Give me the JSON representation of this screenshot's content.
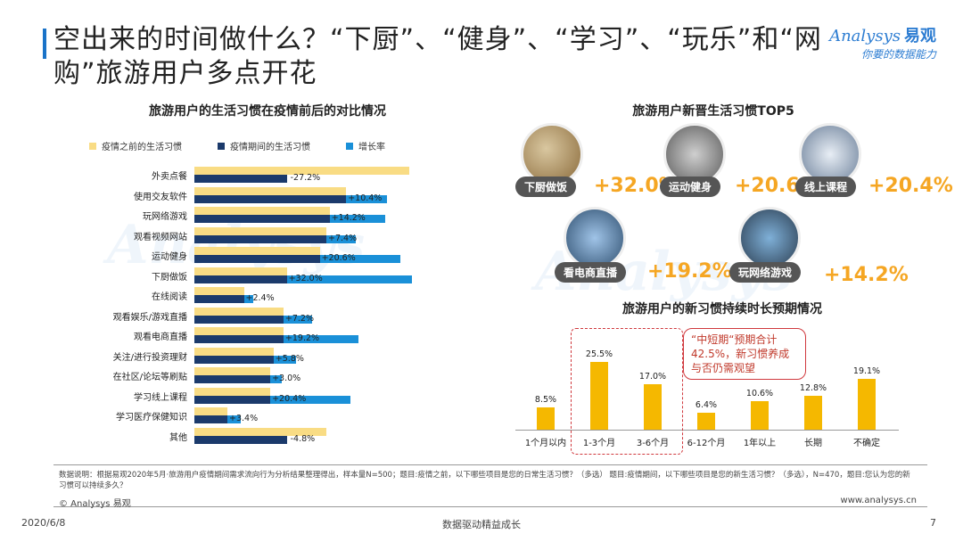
{
  "header": {
    "title": "空出来的时间做什么？“下厨”、“健身”、“学习”、“玩乐”和“网购”旅游用户多点开花",
    "logo_en": "Analysys",
    "logo_cn": "易观",
    "logo_slogan": "你要的数据能力"
  },
  "colors": {
    "before": "#f9dc84",
    "during": "#1b3a6b",
    "growth": "#1a90d8",
    "accent_orange": "#f5a623",
    "vbar": "#f5b800",
    "callout_red": "#d0393e"
  },
  "left_chart_title": "旅游用户的生活习惯在疫情前后的对比情况",
  "right_top_title": "旅游用户新晋生活习惯TOP5",
  "right_bottom_title": "旅游用户的新习惯持续时长预期情况",
  "chart_data": [
    {
      "type": "bar",
      "orientation": "horizontal",
      "title": "旅游用户的生活习惯在疫情前后的对比情况",
      "legend": [
        "疫情之前的生活习惯",
        "疫情期间的生活习惯",
        "增长率"
      ],
      "legend_position": "top",
      "categories": [
        "外卖点餐",
        "使用交友软件",
        "玩网络游戏",
        "观看视频网站",
        "运动健身",
        "下厨做饭",
        "在线阅读",
        "观看娱乐/游戏直播",
        "观看电商直播",
        "关注/进行投资理财",
        "在社区/论坛等刷贴",
        "学习线上课程",
        "学习医疗保健知识",
        "其他"
      ],
      "series": [
        {
          "name": "疫情之前的生活习惯",
          "values": [
            65,
            46,
            41,
            40,
            38,
            28,
            15,
            27,
            27,
            24,
            23,
            23,
            10,
            40
          ]
        },
        {
          "name": "疫情期间的生活习惯",
          "values": [
            28,
            46,
            41,
            40,
            38,
            28,
            15,
            27,
            27,
            24,
            23,
            23,
            10,
            28
          ]
        },
        {
          "name": "增长率",
          "values": [
            -27.2,
            10.4,
            14.2,
            7.4,
            20.6,
            32.0,
            2.4,
            7.2,
            19.2,
            5.8,
            3.0,
            20.4,
            3.4,
            -4.8
          ]
        }
      ],
      "growth_labels": [
        "-27.2%",
        "+10.4%",
        "+14.2%",
        "+7.4%",
        "+20.6%",
        "+32.0%",
        "+2.4%",
        "+7.2%",
        "+19.2%",
        "+5.8%",
        "+3.0%",
        "+20.4%",
        "+3.4%",
        "-4.8%"
      ]
    },
    {
      "type": "bar",
      "title": "旅游用户的新习惯持续时长预期情况",
      "categories": [
        "1个月以内",
        "1-3个月",
        "3-6个月",
        "6-12个月",
        "1年以上",
        "长期",
        "不确定"
      ],
      "values": [
        8.5,
        25.5,
        17.0,
        6.4,
        10.6,
        12.8,
        19.1
      ],
      "value_labels": [
        "8.5%",
        "25.5%",
        "17.0%",
        "6.4%",
        "10.6%",
        "12.8%",
        "19.1%"
      ],
      "ylim": [
        0,
        30
      ],
      "highlight_categories": [
        "1-3个月",
        "3-6个月"
      ],
      "callout": "“中短期“预期合计42.5%，新习惯养成与否仍需观望"
    }
  ],
  "top5": [
    {
      "name": "下厨做饭",
      "pct": "+32.0%",
      "icon": "cooking-photo"
    },
    {
      "name": "运动健身",
      "pct": "+20.6%",
      "icon": "gym-photo"
    },
    {
      "name": "线上课程",
      "pct": "+20.4%",
      "icon": "online-course-photo"
    },
    {
      "name": "看电商直播",
      "pct": "+19.2%",
      "icon": "live-stream-photo"
    },
    {
      "name": "玩网络游戏",
      "pct": "+14.2%",
      "icon": "mobile-game-photo"
    }
  ],
  "footnote": "数据说明：根据易观2020年5月·旅游用户疫情期间需求流向行为分析结果整理得出，样本量N=500；题目:疫情之前，以下哪些项目是您的日常生活习惯？（多选） 题目:疫情期间，以下哪些项目是您的新生活习惯？（多选），N=470，题目:您认为您的新习惯可以持续多久？",
  "footer": {
    "copyright": "© Analysys 易观",
    "website": "www.analysys.cn",
    "date": "2020/6/8",
    "slogan": "数据驱动精益成长",
    "page": "7"
  }
}
